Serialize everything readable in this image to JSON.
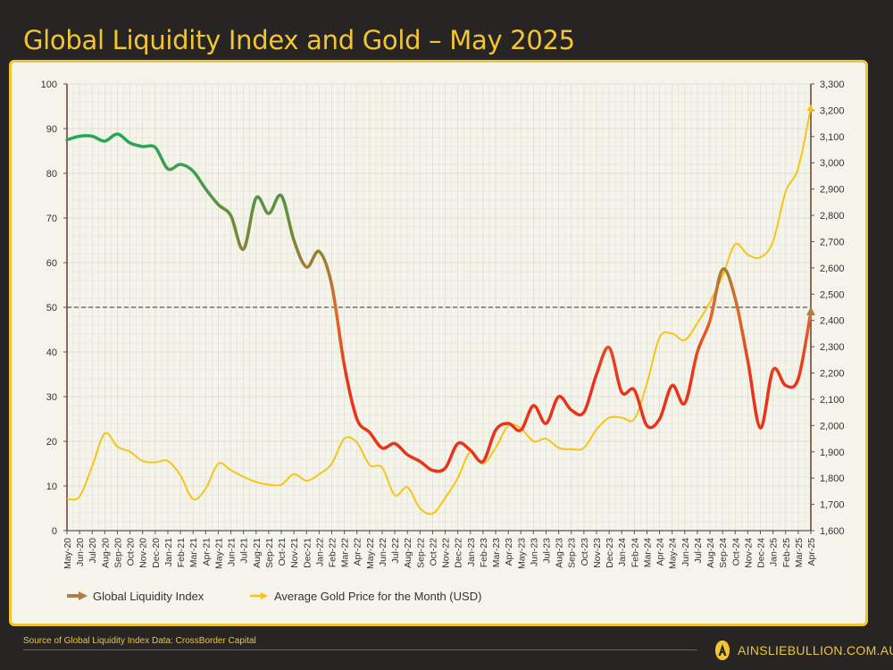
{
  "header": {
    "title": "Global Liquidity Index and Gold – May 2025"
  },
  "footer": {
    "source": "Source of Global Liquidity Index Data: CrossBorder Capital",
    "brand": "AINSLIEBULLION.COM.AU"
  },
  "colors": {
    "background": "#262524",
    "accent": "#f3c530",
    "panel": "#f5f4ea",
    "gli_high": "#1faa59",
    "gli_mid": "#6f8a3a",
    "gli_low": "#e8341c",
    "gold": "#f5c518",
    "legend_gli": "#b07d4a",
    "reference_line": "#555555"
  },
  "chart_data": {
    "type": "line",
    "title": "Global Liquidity Index and Gold – May 2025",
    "categories": [
      "May-20",
      "Jun-20",
      "Jul-20",
      "Aug-20",
      "Sep-20",
      "Oct-20",
      "Nov-20",
      "Dec-20",
      "Jan-21",
      "Feb-21",
      "Mar-21",
      "Apr-21",
      "May-21",
      "Jun-21",
      "Jul-21",
      "Aug-21",
      "Sep-21",
      "Oct-21",
      "Nov-21",
      "Dec-21",
      "Jan-22",
      "Feb-22",
      "Mar-22",
      "Apr-22",
      "May-22",
      "Jun-22",
      "Jul-22",
      "Aug-22",
      "Sep-22",
      "Oct-22",
      "Nov-22",
      "Dec-22",
      "Jan-23",
      "Feb-23",
      "Mar-23",
      "Apr-23",
      "May-23",
      "Jun-23",
      "Jul-23",
      "Aug-23",
      "Sep-23",
      "Oct-23",
      "Nov-23",
      "Dec-23",
      "Jan-24",
      "Feb-24",
      "Mar-24",
      "Apr-24",
      "May-24",
      "Jun-24",
      "Jul-24",
      "Aug-24",
      "Sep-24",
      "Oct-24",
      "Nov-24",
      "Dec-24",
      "Jan-25",
      "Feb-25",
      "Mar-25",
      "Apr-25"
    ],
    "series": [
      {
        "name": "Global Liquidity Index",
        "axis": "left",
        "values": [
          87.5,
          88.3,
          88.3,
          87.2,
          88.8,
          86.8,
          86,
          85.8,
          81,
          82,
          80.5,
          76.5,
          73,
          70.5,
          63,
          74.5,
          71,
          75,
          65,
          59,
          62.5,
          55,
          37,
          25,
          22,
          18.5,
          19.5,
          17,
          15.5,
          13.5,
          14,
          19.5,
          18,
          15.5,
          22.5,
          24,
          22.5,
          28,
          24,
          30,
          27,
          26.5,
          35,
          41,
          31,
          31.5,
          23.5,
          25,
          32.5,
          28.5,
          40,
          47,
          58.5,
          52,
          38,
          23,
          36,
          32.5,
          34,
          49
        ]
      },
      {
        "name": "Average Gold Price for the Month (USD)",
        "axis": "right",
        "values": [
          1720,
          1730,
          1845,
          1970,
          1920,
          1900,
          1865,
          1860,
          1865,
          1810,
          1720,
          1760,
          1855,
          1830,
          1805,
          1785,
          1775,
          1775,
          1815,
          1790,
          1815,
          1855,
          1950,
          1935,
          1850,
          1840,
          1735,
          1765,
          1685,
          1665,
          1725,
          1800,
          1900,
          1855,
          1915,
          2000,
          1990,
          1940,
          1950,
          1915,
          1910,
          1915,
          1985,
          2030,
          2030,
          2025,
          2160,
          2335,
          2350,
          2325,
          2390,
          2470,
          2570,
          2690,
          2650,
          2640,
          2700,
          2890,
          2980,
          3210
        ]
      }
    ],
    "left_axis": {
      "range": [
        0,
        100
      ],
      "ticks": [
        "0",
        "10",
        "20",
        "30",
        "40",
        "50",
        "60",
        "70",
        "80",
        "90",
        "100"
      ]
    },
    "right_axis": {
      "range": [
        1600,
        3300
      ],
      "ticks": [
        "1,600",
        "1,700",
        "1,800",
        "1,900",
        "2,000",
        "2,100",
        "2,200",
        "2,300",
        "2,400",
        "2,500",
        "2,600",
        "2,700",
        "2,800",
        "2,900",
        "3,000",
        "3,100",
        "3,200",
        "3,300"
      ]
    },
    "reference_line": {
      "value": 50,
      "style": "dashed"
    },
    "grid": true,
    "legend_position": "bottom-left"
  }
}
